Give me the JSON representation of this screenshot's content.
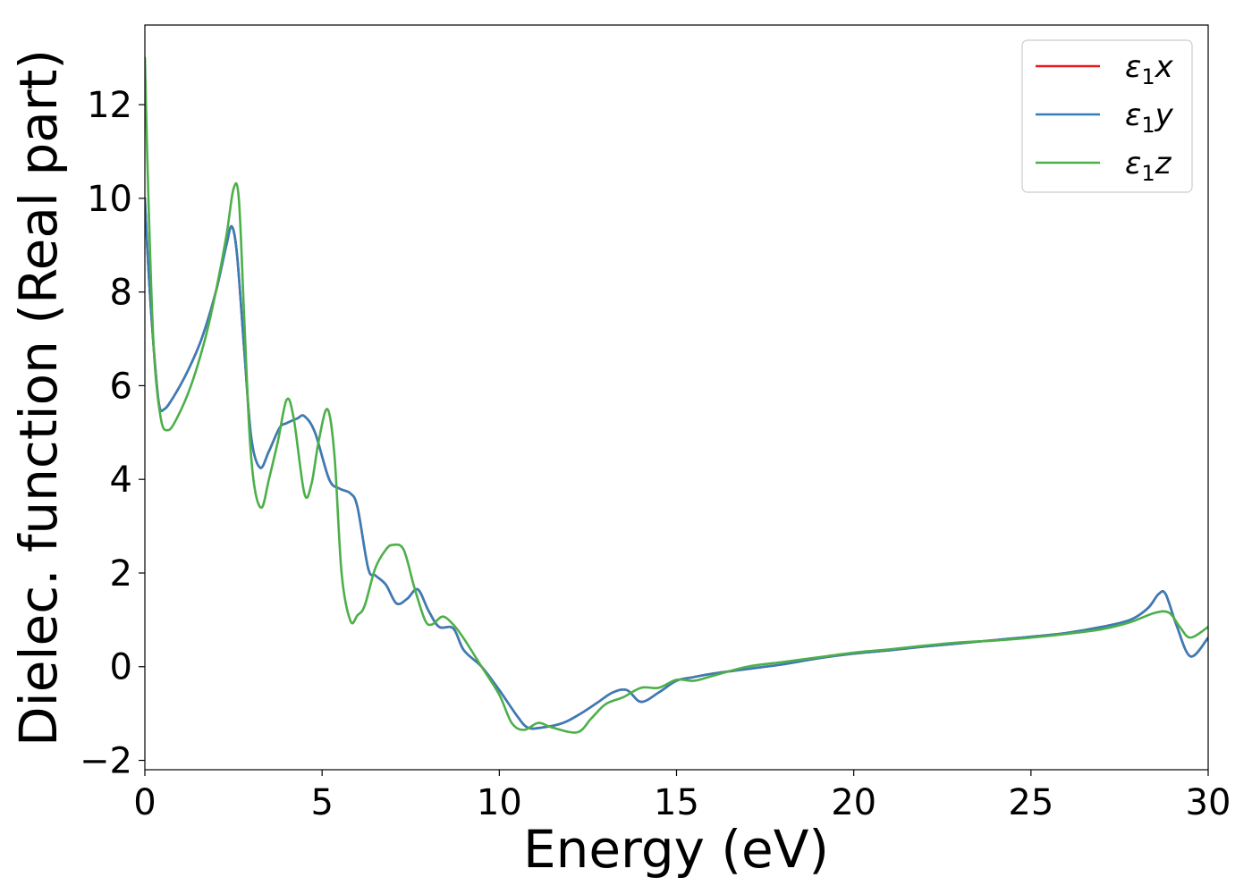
{
  "chart_data": {
    "type": "line",
    "title": "",
    "xlabel": "Energy (eV)",
    "ylabel": "Dielec. function (Real part)",
    "xlim": [
      0,
      30
    ],
    "ylim": [
      -2.2,
      13.7
    ],
    "xticks": [
      0,
      5,
      10,
      15,
      20,
      25,
      30
    ],
    "yticks": [
      -2,
      0,
      2,
      4,
      6,
      8,
      10,
      12
    ],
    "ytick_labels": [
      "−2",
      "0",
      "2",
      "4",
      "6",
      "8",
      "10",
      "12"
    ],
    "grid": false,
    "legend_position": "top-right",
    "series": [
      {
        "name": "ε1x",
        "legend_label": {
          "base": "ε",
          "sub": "1",
          "tail": "x"
        },
        "color": "#e41a1c",
        "x": [
          0,
          0.1,
          0.25,
          0.4,
          0.55,
          0.8,
          1.2,
          1.6,
          2.0,
          2.3,
          2.45,
          2.6,
          2.8,
          3.0,
          3.25,
          3.5,
          3.8,
          4.0,
          4.3,
          4.5,
          4.8,
          5.2,
          5.5,
          5.8,
          6.0,
          6.3,
          6.5,
          6.8,
          7.1,
          7.4,
          7.7,
          8.0,
          8.3,
          8.7,
          9.0,
          9.5,
          10.0,
          10.5,
          10.8,
          11.2,
          11.8,
          12.3,
          12.8,
          13.2,
          13.6,
          14.0,
          14.5,
          15.0,
          15.5,
          16.0,
          17.0,
          18.0,
          19.0,
          20.0,
          21.0,
          22.0,
          23.0,
          24.0,
          25.0,
          26.0,
          27.0,
          27.8,
          28.3,
          28.6,
          28.8,
          29.1,
          29.5,
          30.0
        ],
        "y": [
          10.0,
          8.5,
          6.8,
          5.6,
          5.5,
          5.75,
          6.3,
          7.0,
          8.0,
          9.0,
          9.4,
          8.8,
          6.8,
          4.9,
          4.25,
          4.6,
          5.1,
          5.2,
          5.3,
          5.35,
          5.0,
          4.0,
          3.8,
          3.7,
          3.4,
          2.1,
          1.95,
          1.75,
          1.35,
          1.45,
          1.65,
          1.2,
          0.85,
          0.82,
          0.35,
          0.0,
          -0.5,
          -1.05,
          -1.3,
          -1.3,
          -1.2,
          -1.0,
          -0.75,
          -0.55,
          -0.5,
          -0.75,
          -0.55,
          -0.3,
          -0.22,
          -0.15,
          -0.05,
          0.05,
          0.18,
          0.28,
          0.35,
          0.43,
          0.5,
          0.57,
          0.64,
          0.72,
          0.85,
          1.0,
          1.25,
          1.55,
          1.55,
          0.9,
          0.22,
          0.62
        ]
      },
      {
        "name": "ε1y",
        "legend_label": {
          "base": "ε",
          "sub": "1",
          "tail": "y"
        },
        "color": "#377eb8",
        "x": [
          0,
          0.1,
          0.25,
          0.4,
          0.55,
          0.8,
          1.2,
          1.6,
          2.0,
          2.3,
          2.45,
          2.6,
          2.8,
          3.0,
          3.25,
          3.5,
          3.8,
          4.0,
          4.3,
          4.5,
          4.8,
          5.2,
          5.5,
          5.8,
          6.0,
          6.3,
          6.5,
          6.8,
          7.1,
          7.4,
          7.7,
          8.0,
          8.3,
          8.7,
          9.0,
          9.5,
          10.0,
          10.5,
          10.8,
          11.2,
          11.8,
          12.3,
          12.8,
          13.2,
          13.6,
          14.0,
          14.5,
          15.0,
          15.5,
          16.0,
          17.0,
          18.0,
          19.0,
          20.0,
          21.0,
          22.0,
          23.0,
          24.0,
          25.0,
          26.0,
          27.0,
          27.8,
          28.3,
          28.6,
          28.8,
          29.1,
          29.5,
          30.0
        ],
        "y": [
          10.0,
          8.5,
          6.8,
          5.6,
          5.5,
          5.75,
          6.3,
          7.0,
          8.0,
          9.0,
          9.4,
          8.8,
          6.8,
          4.9,
          4.25,
          4.6,
          5.1,
          5.2,
          5.3,
          5.35,
          5.0,
          4.0,
          3.8,
          3.7,
          3.4,
          2.1,
          1.95,
          1.75,
          1.35,
          1.45,
          1.65,
          1.2,
          0.85,
          0.82,
          0.35,
          0.0,
          -0.5,
          -1.05,
          -1.3,
          -1.3,
          -1.2,
          -1.0,
          -0.75,
          -0.55,
          -0.5,
          -0.75,
          -0.55,
          -0.3,
          -0.22,
          -0.15,
          -0.05,
          0.05,
          0.18,
          0.28,
          0.35,
          0.43,
          0.5,
          0.57,
          0.64,
          0.72,
          0.85,
          1.0,
          1.25,
          1.55,
          1.55,
          0.9,
          0.22,
          0.62
        ]
      },
      {
        "name": "ε1z",
        "legend_label": {
          "base": "ε",
          "sub": "1",
          "tail": "z"
        },
        "color": "#4daf4a",
        "x": [
          0,
          0.1,
          0.25,
          0.45,
          0.65,
          0.9,
          1.3,
          1.7,
          2.0,
          2.3,
          2.5,
          2.65,
          2.8,
          2.95,
          3.1,
          3.3,
          3.5,
          3.75,
          4.0,
          4.2,
          4.5,
          4.7,
          4.9,
          5.15,
          5.35,
          5.55,
          5.8,
          6.0,
          6.2,
          6.5,
          6.8,
          7.0,
          7.3,
          7.6,
          7.9,
          8.1,
          8.4,
          8.7,
          9.0,
          9.5,
          10.0,
          10.35,
          10.7,
          11.1,
          11.5,
          12.2,
          12.6,
          13.0,
          13.5,
          14.0,
          14.5,
          15.0,
          15.5,
          16.0,
          17.0,
          18.0,
          19.0,
          20.0,
          21.0,
          22.0,
          23.0,
          24.0,
          25.0,
          26.0,
          27.0,
          27.8,
          28.5,
          28.9,
          29.2,
          29.5,
          30.0
        ],
        "y": [
          13.0,
          10.0,
          6.8,
          5.3,
          5.05,
          5.3,
          6.0,
          7.0,
          8.0,
          9.2,
          10.2,
          10.0,
          7.5,
          5.0,
          3.8,
          3.4,
          4.0,
          4.8,
          5.7,
          5.3,
          3.7,
          3.9,
          4.8,
          5.5,
          4.5,
          2.0,
          0.98,
          1.1,
          1.3,
          2.1,
          2.5,
          2.6,
          2.5,
          1.7,
          1.0,
          0.9,
          1.07,
          0.9,
          0.6,
          0.0,
          -0.6,
          -1.2,
          -1.35,
          -1.2,
          -1.3,
          -1.4,
          -1.1,
          -0.8,
          -0.65,
          -0.45,
          -0.45,
          -0.28,
          -0.3,
          -0.2,
          0.0,
          0.1,
          0.2,
          0.3,
          0.37,
          0.45,
          0.52,
          0.56,
          0.62,
          0.7,
          0.8,
          0.95,
          1.15,
          1.15,
          0.85,
          0.62,
          0.85
        ]
      }
    ]
  }
}
